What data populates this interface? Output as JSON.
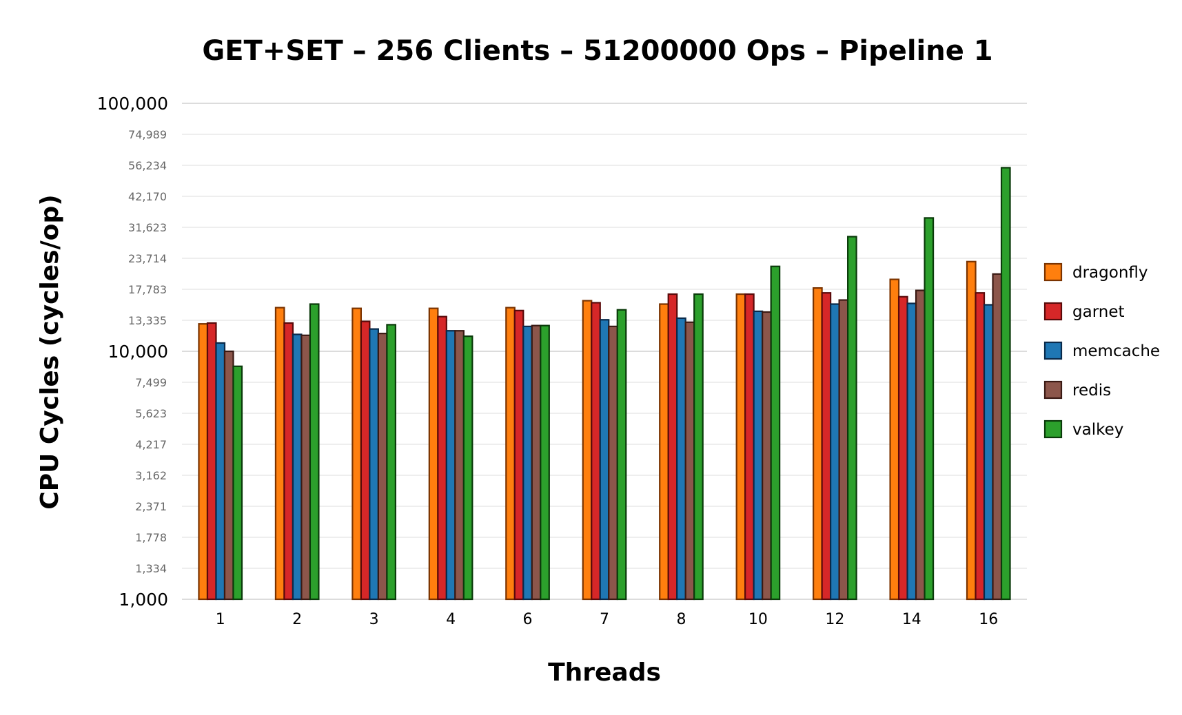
{
  "chart_data": {
    "type": "bar",
    "title": "GET+SET – 256 Clients – 51200000 Ops – Pipeline 1",
    "xlabel": "Threads",
    "ylabel": "CPU Cycles (cycles/op)",
    "yscale": "log",
    "ylim": [
      1000,
      100000
    ],
    "yticks": [
      {
        "value": 1000,
        "label": "1,000",
        "major": true
      },
      {
        "value": 1334,
        "label": "1,334",
        "major": false
      },
      {
        "value": 1778,
        "label": "1,778",
        "major": false
      },
      {
        "value": 2371,
        "label": "2,371",
        "major": false
      },
      {
        "value": 3162,
        "label": "3,162",
        "major": false
      },
      {
        "value": 4217,
        "label": "4,217",
        "major": false
      },
      {
        "value": 5623,
        "label": "5,623",
        "major": false
      },
      {
        "value": 7499,
        "label": "7,499",
        "major": false
      },
      {
        "value": 10000,
        "label": "10,000",
        "major": true
      },
      {
        "value": 13335,
        "label": "13,335",
        "major": false
      },
      {
        "value": 17783,
        "label": "17,783",
        "major": false
      },
      {
        "value": 23714,
        "label": "23,714",
        "major": false
      },
      {
        "value": 31623,
        "label": "31,623",
        "major": false
      },
      {
        "value": 42170,
        "label": "42,170",
        "major": false
      },
      {
        "value": 56234,
        "label": "56,234",
        "major": false
      },
      {
        "value": 74989,
        "label": "74,989",
        "major": false
      },
      {
        "value": 100000,
        "label": "100,000",
        "major": true
      }
    ],
    "categories": [
      "1",
      "2",
      "3",
      "4",
      "6",
      "7",
      "8",
      "10",
      "12",
      "14",
      "16"
    ],
    "legend_position": "right",
    "series": [
      {
        "name": "dragonfly",
        "color": "#ff7f0e",
        "edge": "#7a3300",
        "values": [
          12900,
          15000,
          14900,
          14900,
          15000,
          16000,
          15500,
          17000,
          18000,
          19500,
          23000
        ]
      },
      {
        "name": "garnet",
        "color": "#d62728",
        "edge": "#5a0a0a",
        "values": [
          13000,
          13000,
          13200,
          13800,
          14600,
          15700,
          17000,
          17000,
          17200,
          16600,
          17200
        ]
      },
      {
        "name": "memcache",
        "color": "#1f77b4",
        "edge": "#0a2a4a",
        "values": [
          10800,
          11700,
          12300,
          12100,
          12600,
          13400,
          13600,
          14500,
          15500,
          15600,
          15400
        ]
      },
      {
        "name": "redis",
        "color": "#8c564b",
        "edge": "#3a1a14",
        "values": [
          10000,
          11600,
          11800,
          12100,
          12700,
          12600,
          13100,
          14400,
          16100,
          17600,
          20500
        ]
      },
      {
        "name": "valkey",
        "color": "#2ca02c",
        "edge": "#0a3a0a",
        "values": [
          8700,
          15500,
          12800,
          11500,
          12700,
          14700,
          17000,
          22000,
          29000,
          34500,
          55000
        ]
      }
    ]
  }
}
